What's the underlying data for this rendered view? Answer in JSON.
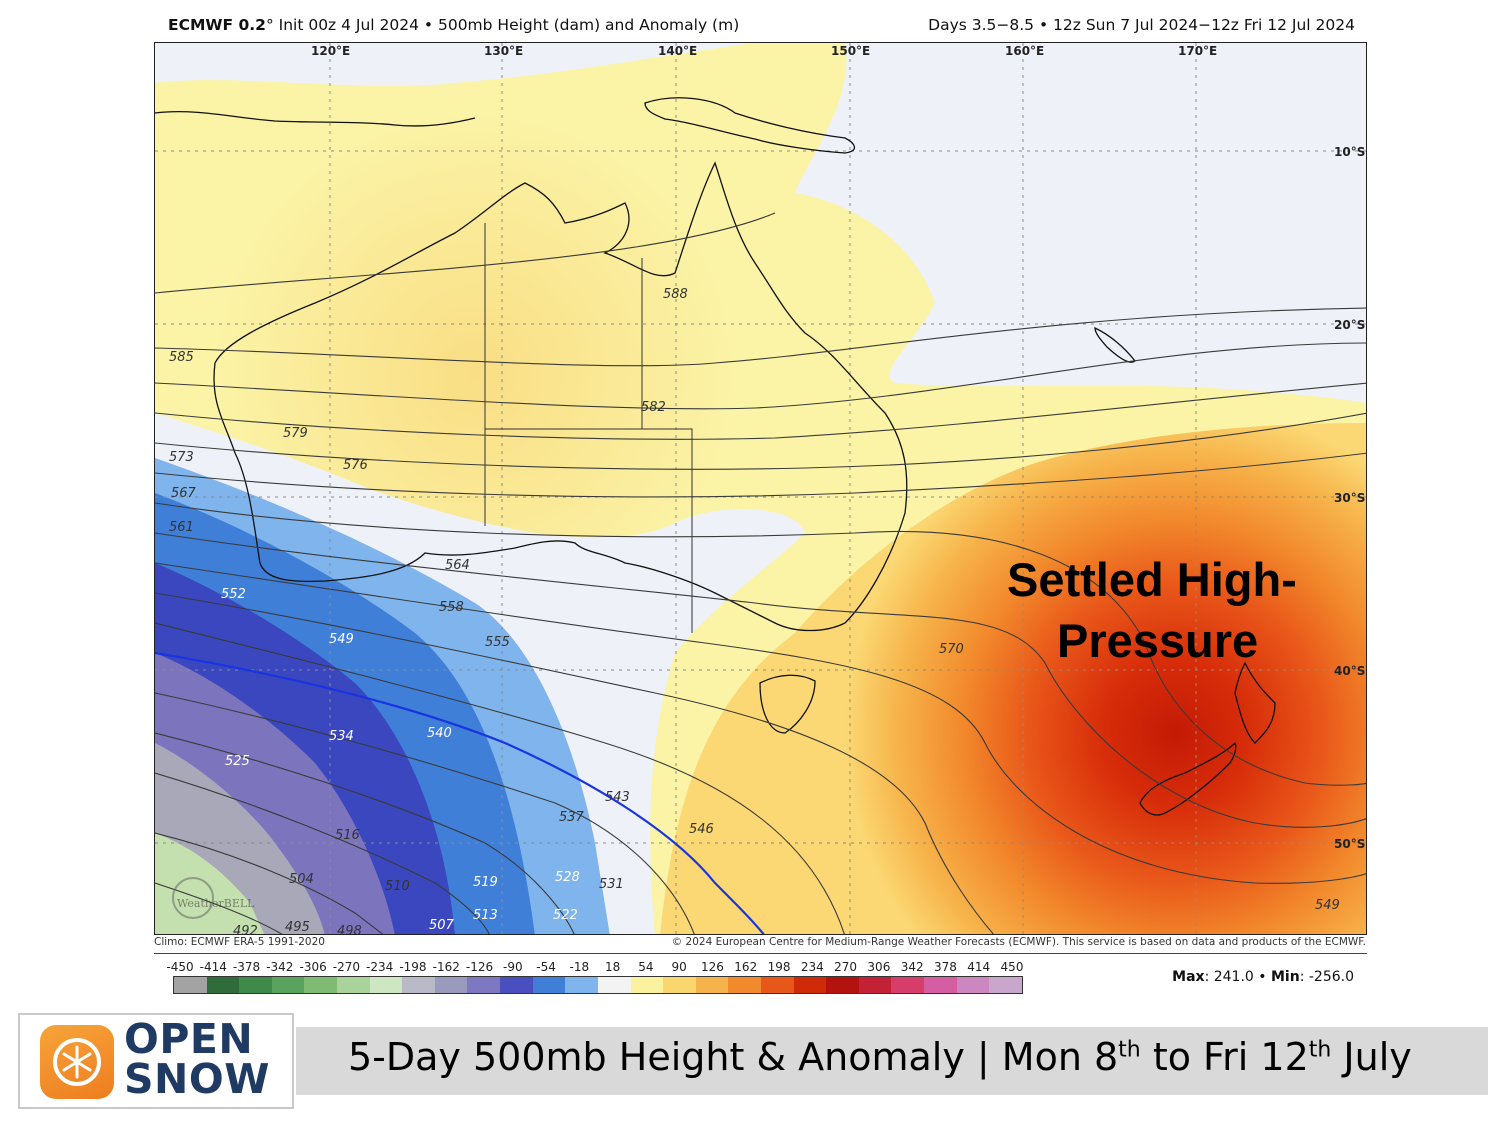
{
  "header": {
    "model": "ECMWF 0.2",
    "deg": "°",
    "init_text": "Init 00z 4 Jul 2024 • 500mb Height (dam) and Anomaly (m)",
    "valid_text": "Days 3.5−8.5 • 12z Sun 7 Jul 2024−12z Fri 12 Jul 2024"
  },
  "map": {
    "lon_labels": [
      "120°E",
      "130°E",
      "140°E",
      "150°E",
      "160°E",
      "170°E"
    ],
    "lat_labels": [
      "10°S",
      "20°S",
      "30°S",
      "40°S",
      "50°S"
    ],
    "contour_labels": [
      "585",
      "588",
      "582",
      "579",
      "576",
      "573",
      "567",
      "561",
      "564",
      "558",
      "555",
      "552",
      "549",
      "540",
      "534",
      "525",
      "516",
      "504",
      "495",
      "492",
      "498",
      "510",
      "507",
      "513",
      "519",
      "522",
      "528",
      "531",
      "537",
      "543",
      "546",
      "570",
      "549"
    ],
    "annotation_line1": "Settled High-",
    "annotation_line2": "Pressure",
    "watermark": "WeatherBELL",
    "colors": {
      "anomaly_low": "#2b46c4",
      "anomaly_high": "#d92b05",
      "contour_540": "#1a35e0",
      "contour": "#333333"
    }
  },
  "footer": {
    "climo": "Climo: ECMWF ERA-5 1991-2020",
    "copyright": "© 2024 European Centre for Medium-Range Weather Forecasts (ECMWF). This service is based on data and products of the ECMWF.",
    "colorbar_ticks": [
      "-450",
      "-414",
      "-378",
      "-342",
      "-306",
      "-270",
      "-234",
      "-198",
      "-162",
      "-126",
      "-90",
      "-54",
      "-18",
      "18",
      "54",
      "90",
      "126",
      "162",
      "198",
      "234",
      "270",
      "306",
      "342",
      "378",
      "414",
      "450"
    ],
    "colorbar_colors": [
      "#a3a3a3",
      "#2f6b3b",
      "#3f8a4a",
      "#5aa35e",
      "#80bb74",
      "#a9d39a",
      "#cfe6c2",
      "#b9b9c7",
      "#9a9abf",
      "#7e78c2",
      "#4a4fc0",
      "#3f7fd8",
      "#7fb5ec",
      "#f3f3f3",
      "#fbf2a0",
      "#f9d76e",
      "#f6b34c",
      "#f18a2c",
      "#e7571a",
      "#d02b09",
      "#b3120f",
      "#c32236",
      "#d73d6b",
      "#d55ea3",
      "#cc86c0",
      "#c9a7cd"
    ],
    "max_label": "Max",
    "max_value": ": 241.0 • ",
    "min_label": "Min",
    "min_value": ": -256.0"
  },
  "branding": {
    "logo_line1": "OPEN",
    "logo_line2": "SNOW"
  },
  "caption": {
    "part1": "5-Day 500mb Height & Anomaly | Mon 8",
    "sup1": "th",
    "part2": " to Fri 12",
    "sup2": "th",
    "part3": " July"
  }
}
